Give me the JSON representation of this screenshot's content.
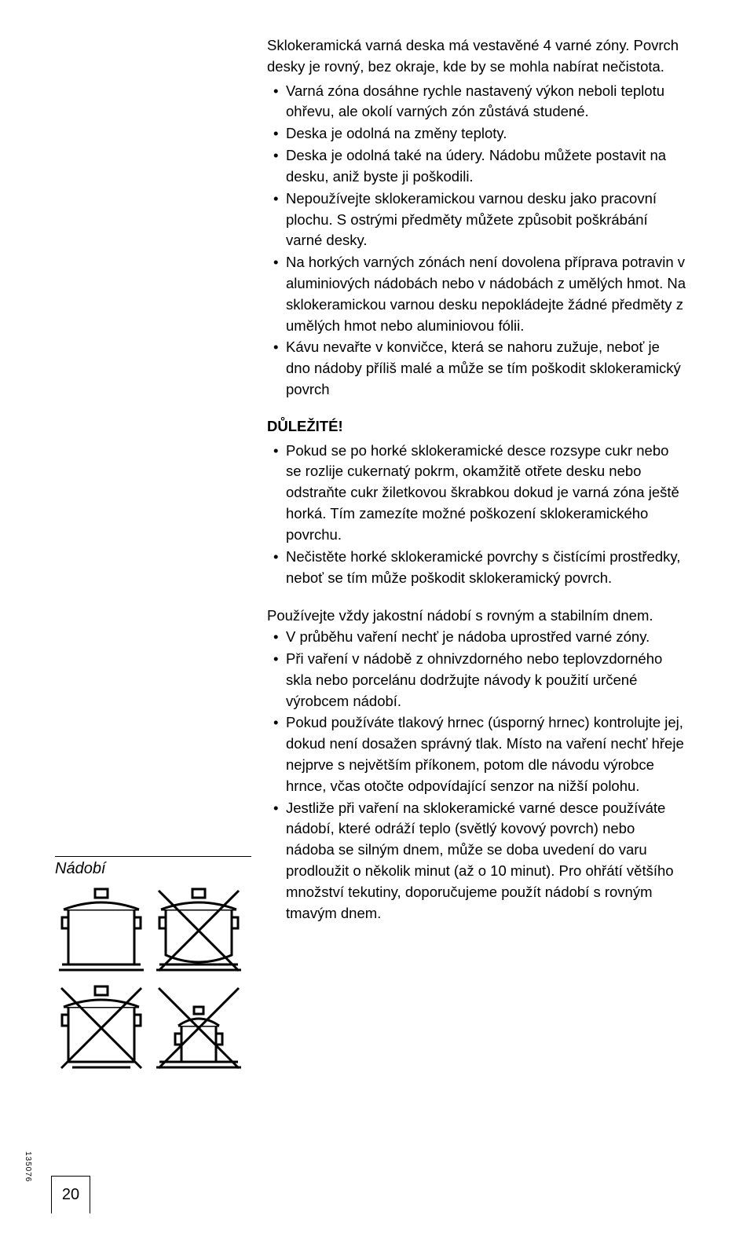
{
  "intro": "Sklokeramická varná deska má vestavěné 4 varné zóny. Povrch desky je rovný, bez okraje, kde by se mohla nabírat nečistota.",
  "bullets1": [
    "Varná zóna dosáhne rychle nastavený výkon neboli teplotu ohřevu, ale okolí varných zón zůstává studené.",
    "Deska je odolná na změny teploty.",
    "Deska je odolná také na údery. Nádobu můžete postavit na desku, aniž byste ji poškodili.",
    "Nepoužívejte sklokeramickou varnou desku jako pracovní plochu. S ostrými předměty  můžete způsobit poškrábání varné desky.",
    "Na horkých varných zónách není dovolena příprava potravin v aluminiových nádobách nebo v nádobách z umělých hmot. Na sklokeramickou varnou desku nepokládejte žádné předměty z umělých hmot nebo aluminiovou fólii.",
    "Kávu nevařte v konvičce, která se nahoru zužuje, neboť je dno nádoby příliš malé a může se tím poškodit sklokeramický povrch"
  ],
  "heading": "DŮLEŽITÉ!",
  "bullets2": [
    "Pokud se po horké sklokeramické desce rozsype cukr nebo se rozlije cukernatý pokrm, okamžitě otřete desku nebo odstraňte cukr  žiletkovou škrabkou dokud je varná zóna ještě horká. Tím zamezíte možné poškození sklokeramického povrchu.",
    "Nečistěte horké sklokeramické povrchy s čistícími prostředky, neboť se tím může poškodit sklokeramický povrch."
  ],
  "section_label": "Nádobí",
  "intro3": "Používejte vždy jakostní nádobí s rovným a stabilním dnem.",
  "bullets3": [
    "V průběhu vaření nechť je nádoba uprostřed varné zóny.",
    "Při vaření v nádobě z ohnivzdorného nebo teplovzdorného skla nebo porcelánu dodržujte návody k použití určené výrobcem nádobí.",
    "Pokud používáte tlakový hrnec (úsporný hrnec) kontrolujte jej, dokud není dosažen správný tlak. Místo na vaření nechť hřeje nejprve s největším příkonem, potom dle návodu výrobce hrnce, včas otočte odpovídající senzor na nižší polohu.",
    "Jestliže při vaření na sklokeramické varné desce používáte nádobí, které odráží teplo (světlý kovový povrch) nebo nádoba se silným dnem, může se doba uvedení do varu prodloužit o několik minut (až o 10 minut). Pro ohřátí většího množství tekutiny, doporučujeme použít nádobí s rovným tmavým dnem."
  ],
  "side_num": "135076",
  "page_num": "20",
  "pots": [
    {
      "crossed": false,
      "wide": true,
      "small": false,
      "curved": false
    },
    {
      "crossed": true,
      "wide": true,
      "small": false,
      "curved": true
    },
    {
      "crossed": true,
      "wide": false,
      "small": false,
      "curved": false
    },
    {
      "crossed": true,
      "wide": true,
      "small": true,
      "curved": false
    }
  ]
}
